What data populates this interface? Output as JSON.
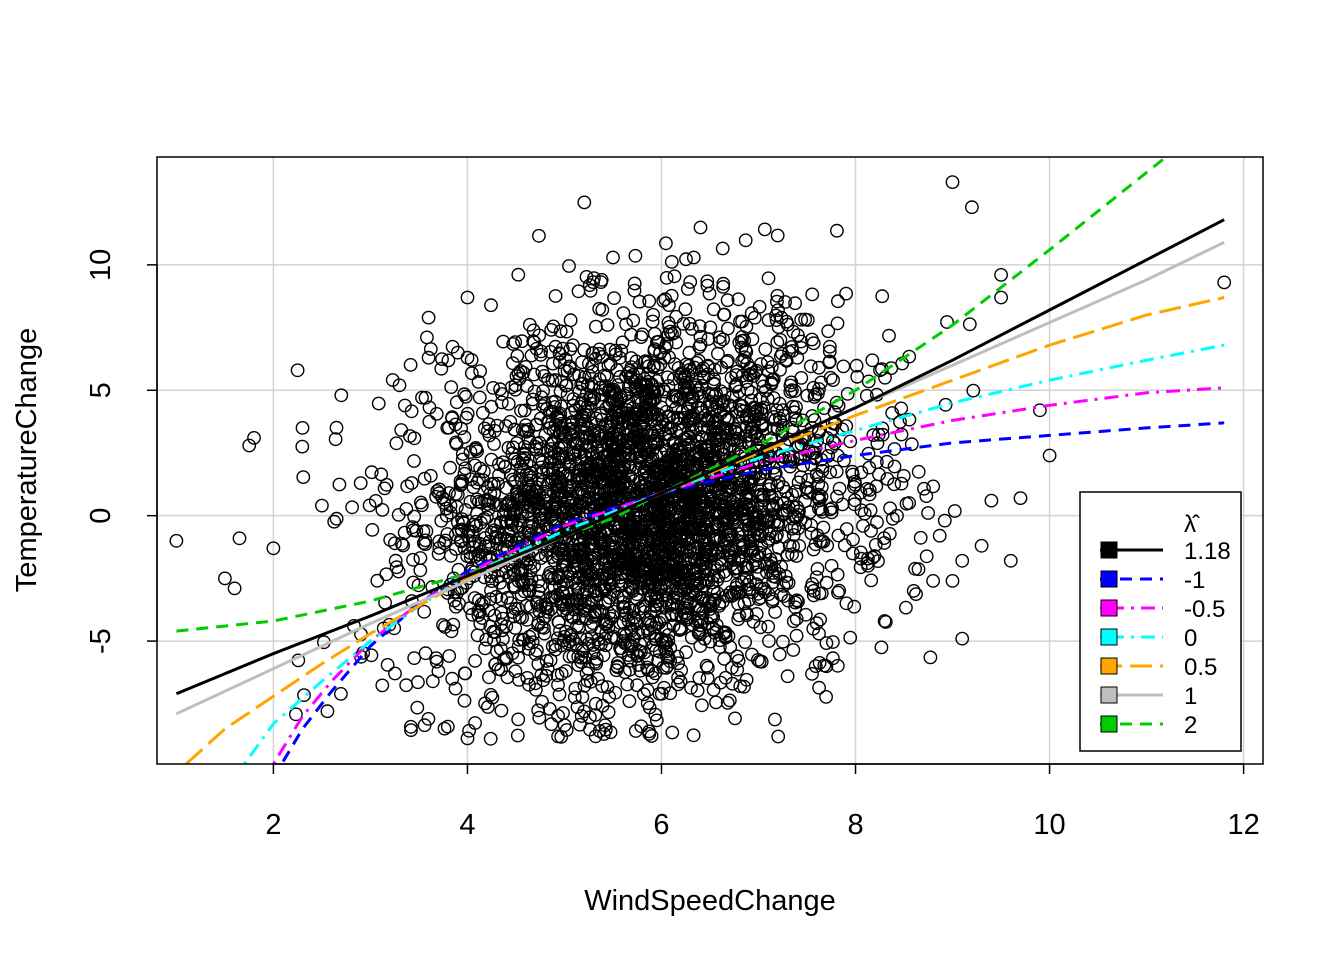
{
  "chart_data": {
    "type": "scatter",
    "title": "",
    "xlabel": "WindSpeedChange",
    "ylabel": "TemperatureChange",
    "xlim": [
      0.8,
      12.2
    ],
    "ylim": [
      -9.9,
      14.3
    ],
    "x_ticks": [
      2,
      4,
      6,
      8,
      10,
      12
    ],
    "y_ticks": [
      -5,
      0,
      5,
      10
    ],
    "grid": true,
    "legend": {
      "position": "bottom-right",
      "title": "λ̂",
      "entries": [
        {
          "label": "1.18",
          "color": "#000000",
          "dash": "solid"
        },
        {
          "label": "-1",
          "color": "#0000FF",
          "dash": "dashed"
        },
        {
          "label": "-0.5",
          "color": "#FF00FF",
          "dash": "dotdash"
        },
        {
          "label": "0",
          "color": "#00FFFF",
          "dash": "dotdash"
        },
        {
          "label": "0.5",
          "color": "#FFA500",
          "dash": "longdash"
        },
        {
          "label": "1",
          "color": "#BEBEBE",
          "dash": "solid"
        },
        {
          "label": "2",
          "color": "#00CD00",
          "dash": "dashed"
        }
      ]
    },
    "series": [
      {
        "name": "1.18",
        "x": [
          1.0,
          2.0,
          3.0,
          4.0,
          5.0,
          6.0,
          7.0,
          8.0,
          9.0,
          10.0,
          11.0,
          11.8
        ],
        "y": [
          -7.1,
          -5.5,
          -4.0,
          -2.4,
          -0.8,
          0.9,
          2.6,
          4.3,
          6.2,
          8.2,
          10.2,
          11.8
        ]
      },
      {
        "name": "-1",
        "x": [
          2.1,
          2.3,
          2.6,
          3.0,
          3.5,
          4.0,
          5.0,
          6.0,
          7.0,
          8.0,
          9.0,
          10.0,
          11.0,
          11.8
        ],
        "y": [
          -9.8,
          -8.5,
          -7.0,
          -5.2,
          -3.5,
          -2.2,
          -0.3,
          0.9,
          1.8,
          2.4,
          2.9,
          3.2,
          3.5,
          3.7
        ]
      },
      {
        "name": "-0.5",
        "x": [
          2.0,
          2.3,
          2.6,
          3.0,
          3.5,
          4.0,
          5.0,
          6.0,
          7.0,
          8.0,
          9.0,
          10.0,
          11.0,
          11.8
        ],
        "y": [
          -9.9,
          -8.0,
          -6.6,
          -5.0,
          -3.5,
          -2.3,
          -0.4,
          0.9,
          2.1,
          3.0,
          3.8,
          4.4,
          4.9,
          5.1
        ]
      },
      {
        "name": "0",
        "x": [
          1.7,
          2.0,
          2.5,
          3.0,
          3.5,
          4.0,
          5.0,
          6.0,
          7.0,
          8.0,
          9.0,
          10.0,
          11.0,
          11.8
        ],
        "y": [
          -9.9,
          -8.3,
          -6.6,
          -5.0,
          -3.6,
          -2.4,
          -0.6,
          0.9,
          2.3,
          3.4,
          4.5,
          5.4,
          6.2,
          6.8
        ]
      },
      {
        "name": "0.5",
        "x": [
          1.1,
          1.5,
          2.0,
          2.5,
          3.0,
          3.5,
          4.0,
          5.0,
          6.0,
          7.0,
          8.0,
          9.0,
          10.0,
          11.0,
          11.8
        ],
        "y": [
          -9.9,
          -8.5,
          -7.2,
          -5.9,
          -4.7,
          -3.6,
          -2.5,
          -0.8,
          0.9,
          2.5,
          4.0,
          5.4,
          6.8,
          8.0,
          8.7
        ]
      },
      {
        "name": "1",
        "x": [
          1.0,
          2.0,
          3.0,
          4.0,
          5.0,
          6.0,
          7.0,
          8.0,
          9.0,
          10.0,
          11.0,
          11.8
        ],
        "y": [
          -7.9,
          -6.1,
          -4.3,
          -2.6,
          -0.8,
          0.9,
          2.6,
          4.3,
          6.0,
          7.7,
          9.4,
          10.9
        ]
      },
      {
        "name": "2",
        "x": [
          1.0,
          2.0,
          3.0,
          4.0,
          5.0,
          5.5,
          6.0,
          7.0,
          8.0,
          9.0,
          10.0,
          11.2
        ],
        "y": [
          -4.6,
          -4.2,
          -3.4,
          -2.3,
          -0.8,
          -0.1,
          0.9,
          2.8,
          5.0,
          7.6,
          10.6,
          14.3
        ]
      }
    ],
    "scatter_points": {
      "name": "observations",
      "note": "dense cloud of ~10000 points centred near (5.8, 0) plus sparse outliers",
      "outliers": [
        [
          1.0,
          -1.0
        ],
        [
          1.5,
          -2.5
        ],
        [
          1.6,
          -2.9
        ],
        [
          1.65,
          -0.9
        ],
        [
          1.75,
          2.8
        ],
        [
          1.8,
          3.1
        ],
        [
          2.0,
          -1.3
        ],
        [
          2.3,
          3.5
        ],
        [
          2.5,
          0.4
        ],
        [
          2.7,
          4.8
        ],
        [
          2.9,
          1.3
        ],
        [
          3.3,
          5.2
        ],
        [
          3.6,
          6.3
        ],
        [
          3.9,
          6.5
        ],
        [
          4.0,
          6.3
        ],
        [
          4.0,
          8.7
        ],
        [
          9.0,
          13.3
        ],
        [
          9.2,
          12.3
        ],
        [
          9.5,
          9.6
        ],
        [
          9.5,
          8.7
        ],
        [
          9.1,
          -4.9
        ],
        [
          9.3,
          -1.2
        ],
        [
          9.6,
          -1.8
        ],
        [
          9.7,
          0.7
        ],
        [
          9.9,
          4.2
        ],
        [
          10.0,
          2.4
        ],
        [
          11.8,
          9.3
        ],
        [
          9.4,
          0.6
        ],
        [
          9.0,
          -2.6
        ],
        [
          9.1,
          -1.8
        ],
        [
          8.8,
          -2.6
        ],
        [
          8.6,
          -3.0
        ],
        [
          8.3,
          -4.2
        ],
        [
          7.7,
          -6.0
        ],
        [
          7.3,
          -6.4
        ]
      ]
    }
  }
}
